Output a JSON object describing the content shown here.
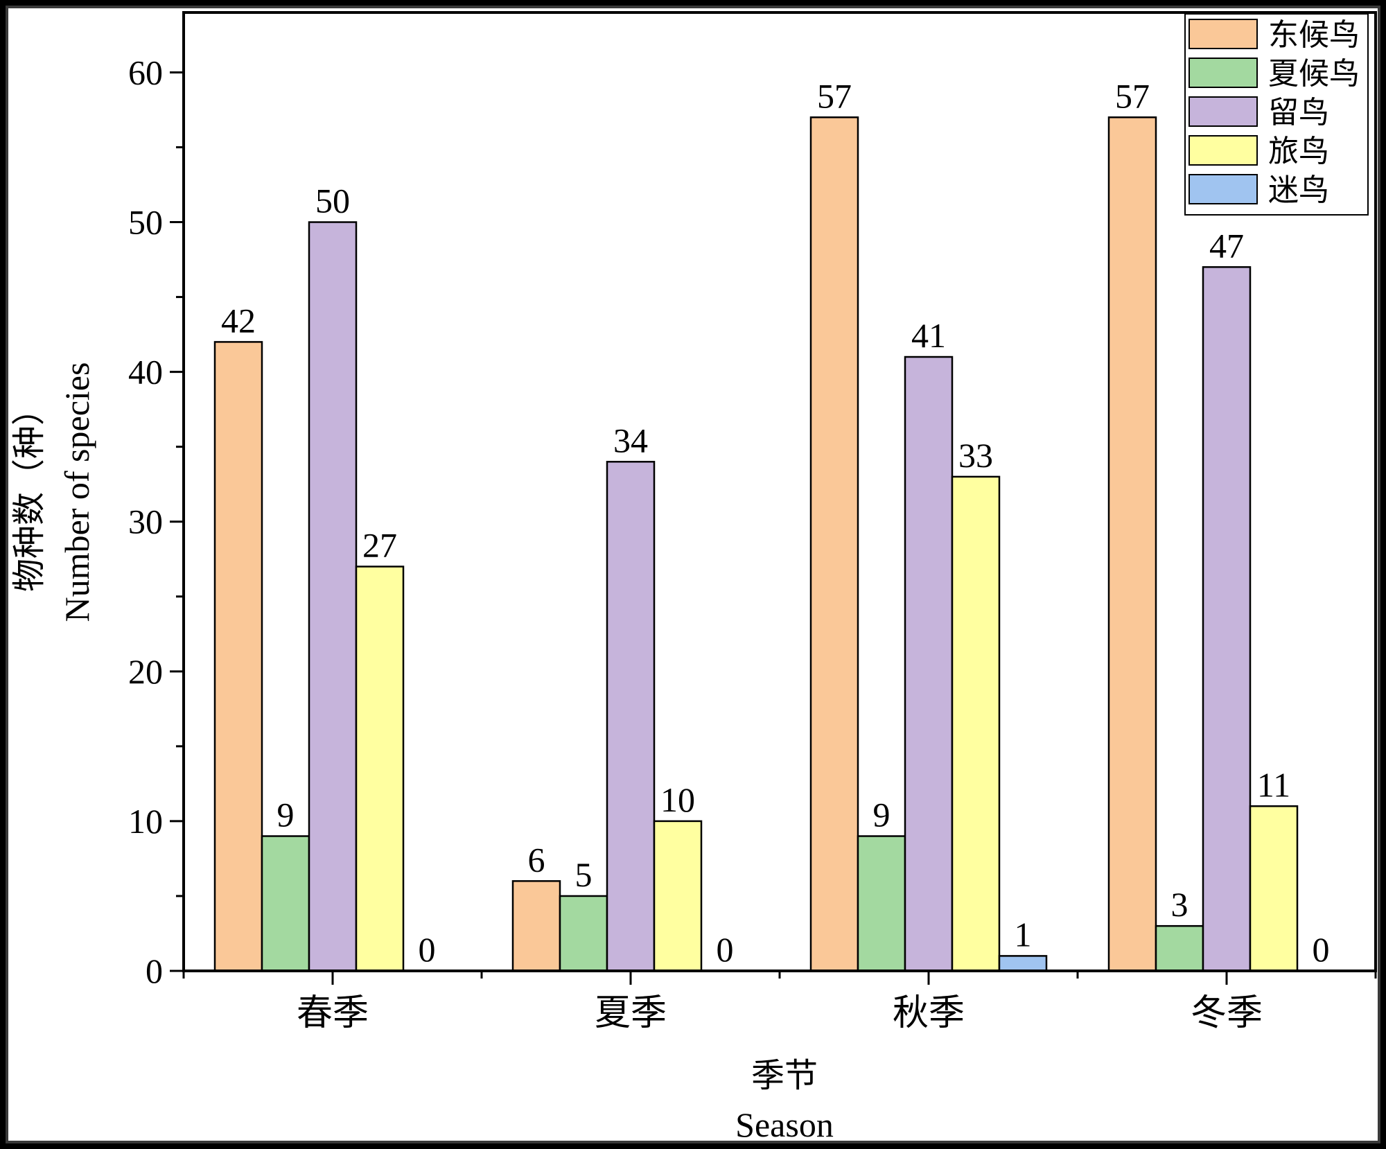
{
  "chart_data": {
    "type": "bar",
    "categories": [
      "春季",
      "夏季",
      "秋季",
      "冬季"
    ],
    "series": [
      {
        "name": "东候鸟",
        "color": "#FAC898",
        "values": [
          42,
          6,
          57,
          57
        ]
      },
      {
        "name": "夏候鸟",
        "color": "#A3D9A0",
        "values": [
          9,
          5,
          9,
          3
        ]
      },
      {
        "name": "留鸟",
        "color": "#C6B4DB",
        "values": [
          50,
          34,
          41,
          47
        ]
      },
      {
        "name": "旅鸟",
        "color": "#FFFFA0",
        "values": [
          27,
          10,
          33,
          11
        ]
      },
      {
        "name": "迷鸟",
        "color": "#A0C4F0",
        "values": [
          0,
          0,
          1,
          0
        ]
      }
    ],
    "xlabel": "季节",
    "xlabel_en": "Season",
    "ylabel": "物种数（种）",
    "ylabel_en": "Number of species",
    "ylim": [
      0,
      64
    ],
    "yticks": [
      0,
      10,
      20,
      30,
      40,
      50,
      60
    ],
    "legend_position": "top-right",
    "grid": false
  }
}
